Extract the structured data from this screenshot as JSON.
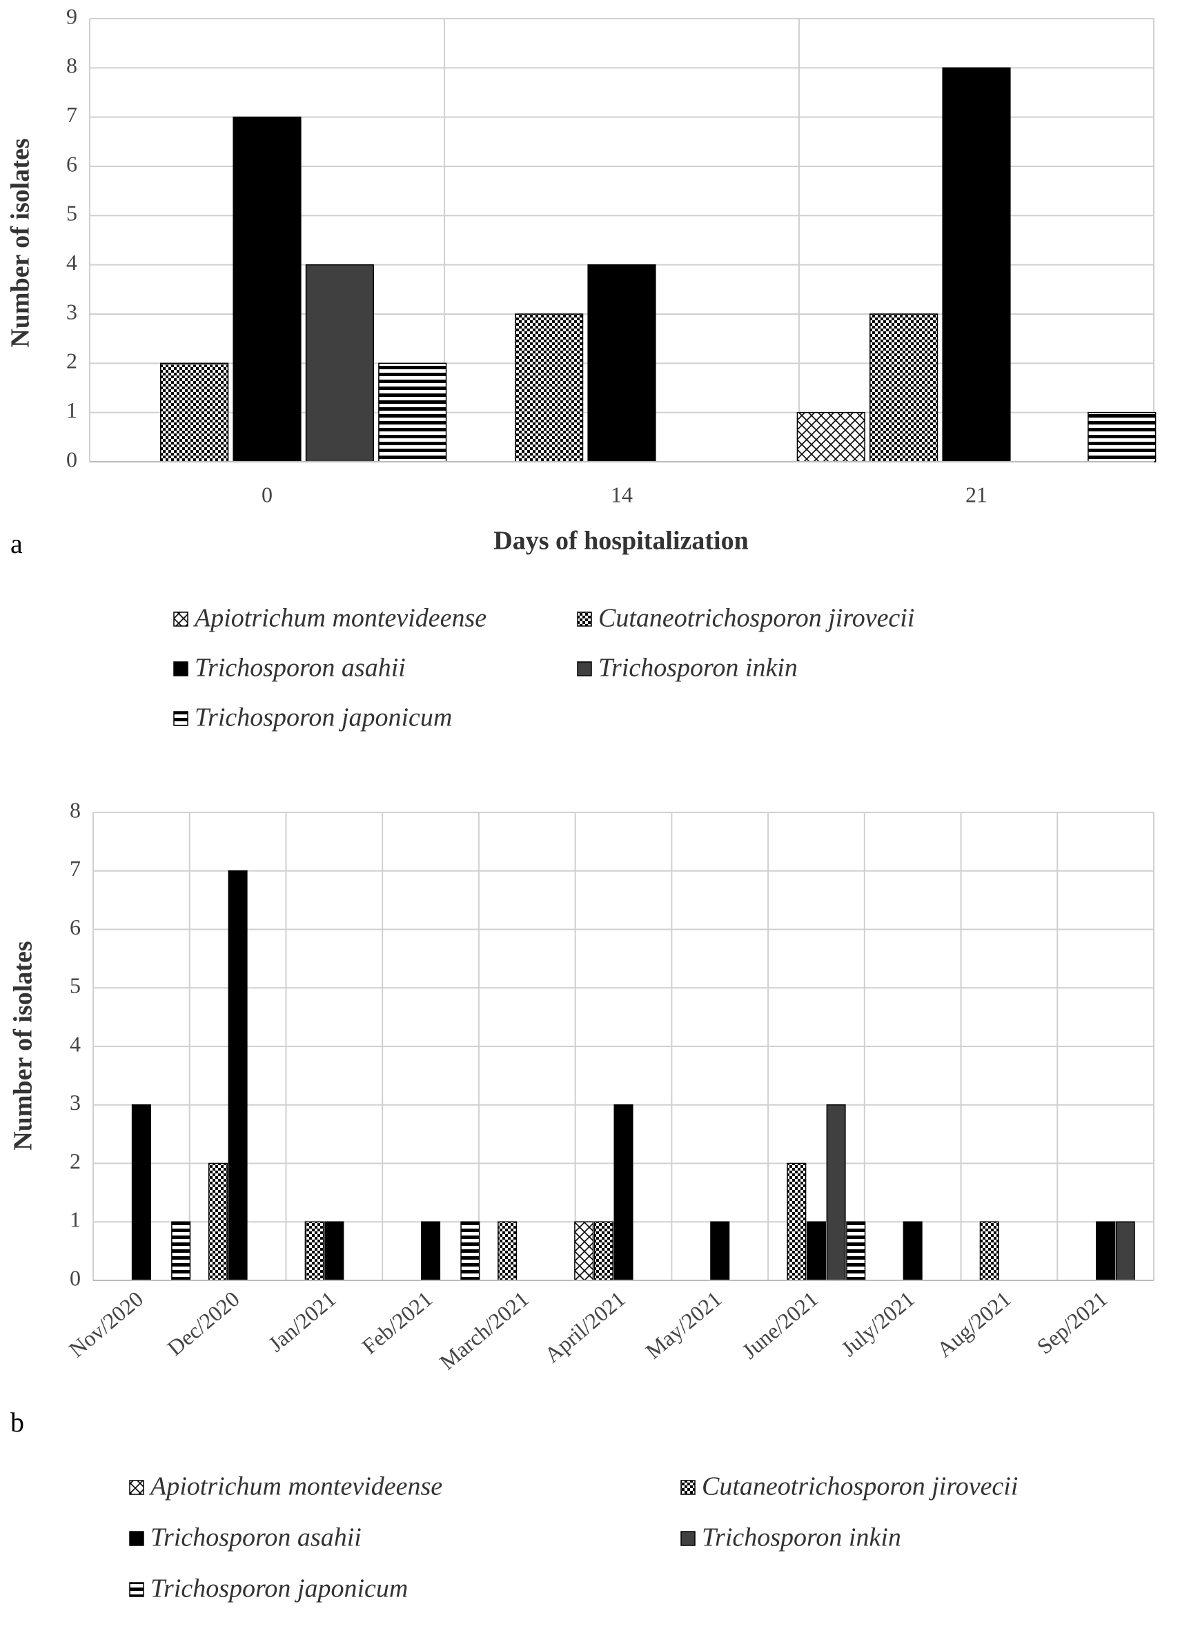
{
  "chart_data": [
    {
      "type": "bar",
      "panel_label": "a",
      "x_label": "Days of hospitalization",
      "y_label": "Number of isolates",
      "categories": [
        "0",
        "14",
        "21"
      ],
      "series": [
        {
          "name": "Apiotrichum montevideense",
          "color": "#000000",
          "pattern": "crosshatch",
          "values": [
            null,
            null,
            1
          ]
        },
        {
          "name": "Cutaneotrichosporon jirovecii",
          "color": "#000000",
          "pattern": "checker",
          "values": [
            2,
            3,
            3
          ]
        },
        {
          "name": "Trichosporon asahii",
          "color": "#000000",
          "pattern": "solid",
          "values": [
            7,
            4,
            8
          ]
        },
        {
          "name": "Trichosporon inkin",
          "color": "#404040",
          "pattern": "solid",
          "values": [
            4,
            null,
            null
          ]
        },
        {
          "name": "Trichosporon japonicum",
          "color": "#000000",
          "pattern": "hstripe",
          "values": [
            2,
            null,
            1
          ]
        }
      ],
      "ylim": [
        0,
        9
      ],
      "yticks": [
        0,
        1,
        2,
        3,
        4,
        5,
        6,
        7,
        8,
        9
      ],
      "grid": true
    },
    {
      "type": "bar",
      "panel_label": "b",
      "y_label": "Number of isolates",
      "categories": [
        "Nov/2020",
        "Dec/2020",
        "Jan/2021",
        "Feb/2021",
        "March/2021",
        "April/2021",
        "May/2021",
        "June/2021",
        "July/2021",
        "Aug/2021",
        "Sep/2021"
      ],
      "series": [
        {
          "name": "Apiotrichum montevideense",
          "color": "#000000",
          "pattern": "crosshatch",
          "values": [
            null,
            null,
            null,
            null,
            null,
            1,
            null,
            null,
            null,
            null,
            null
          ]
        },
        {
          "name": "Cutaneotrichosporon jirovecii",
          "color": "#000000",
          "pattern": "checker",
          "values": [
            null,
            2,
            1,
            null,
            1,
            1,
            null,
            2,
            null,
            1,
            null
          ]
        },
        {
          "name": "Trichosporon asahii",
          "color": "#000000",
          "pattern": "solid",
          "values": [
            3,
            7,
            1,
            1,
            null,
            3,
            1,
            1,
            1,
            null,
            1
          ]
        },
        {
          "name": "Trichosporon inkin",
          "color": "#404040",
          "pattern": "solid",
          "values": [
            null,
            null,
            null,
            null,
            null,
            null,
            null,
            3,
            null,
            null,
            1
          ]
        },
        {
          "name": "Trichosporon japonicum",
          "color": "#000000",
          "pattern": "hstripe",
          "values": [
            1,
            null,
            null,
            1,
            null,
            null,
            null,
            1,
            null,
            null,
            null
          ]
        }
      ],
      "ylim": [
        0,
        8
      ],
      "yticks": [
        0,
        1,
        2,
        3,
        4,
        5,
        6,
        7,
        8
      ],
      "grid": true
    }
  ]
}
